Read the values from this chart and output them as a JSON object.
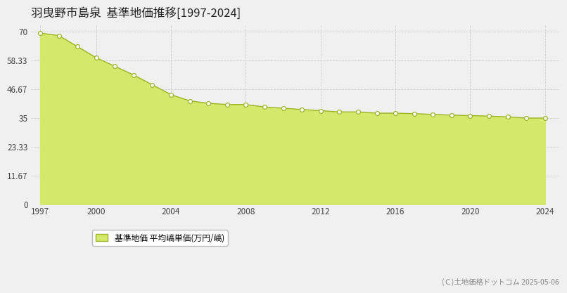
{
  "title": "羽曳野市島泉  基準地価推移[1997-2024]",
  "years": [
    1997,
    1998,
    1999,
    2000,
    2001,
    2002,
    2003,
    2004,
    2005,
    2006,
    2007,
    2008,
    2009,
    2010,
    2011,
    2012,
    2013,
    2014,
    2015,
    2016,
    2017,
    2018,
    2019,
    2020,
    2021,
    2022,
    2023,
    2024
  ],
  "values": [
    69.5,
    68.5,
    64.0,
    59.5,
    56.0,
    52.5,
    48.5,
    44.5,
    42.0,
    41.0,
    40.5,
    40.5,
    39.5,
    39.0,
    38.5,
    38.0,
    37.5,
    37.5,
    37.0,
    37.0,
    36.8,
    36.5,
    36.2,
    36.0,
    35.8,
    35.5,
    35.0,
    35.0
  ],
  "fill_color": "#d4e96b",
  "line_color": "#9ab526",
  "marker_face_color": "#ffffff",
  "marker_edge_color": "#9ab526",
  "background_color": "#f0f0f0",
  "plot_bg_color": "#f0f0f0",
  "grid_color": "#cccccc",
  "yticks": [
    0,
    11.67,
    23.33,
    35,
    46.67,
    58.33,
    70
  ],
  "ytick_labels": [
    "0",
    "11.67",
    "23.33",
    "35",
    "46.67",
    "58.33",
    "70"
  ],
  "ylim": [
    0,
    73
  ],
  "xlim": [
    1996.5,
    2024.8
  ],
  "xticks": [
    1997,
    2000,
    2004,
    2008,
    2012,
    2016,
    2020,
    2024
  ],
  "legend_label": "基準地価 平均嵪単価(万円/嵪)",
  "copyright_text": "(Ｃ)土地価格ドットコム 2025-05-06",
  "title_fontsize": 12,
  "tick_fontsize": 8.5,
  "legend_fontsize": 8.5,
  "copyright_fontsize": 7.5
}
